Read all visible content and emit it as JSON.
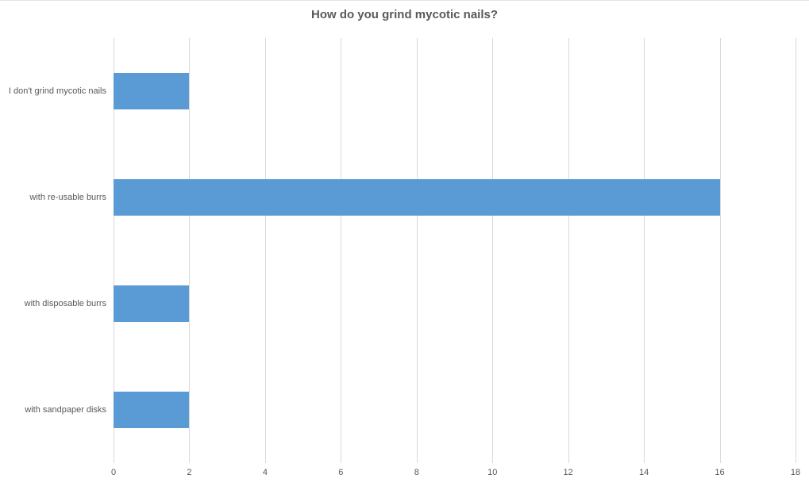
{
  "chart": {
    "title": "How do you grind mycotic nails?"
  },
  "colors": {
    "bar": "#5B9BD5",
    "gridline": "#D9D9D9",
    "title_text": "#595959",
    "axis_text": "#595959",
    "background": "#FFFFFF"
  },
  "chart_data": {
    "type": "bar",
    "orientation": "horizontal",
    "title": "How do you grind mycotic nails?",
    "categories": [
      "I don't grind mycotic nails",
      "with re-usable burrs",
      "with disposable burrs",
      "with sandpaper disks"
    ],
    "values": [
      2,
      16,
      2,
      2
    ],
    "xlabel": "",
    "ylabel": "",
    "xlim": [
      0,
      18
    ],
    "xticks": [
      0,
      2,
      4,
      6,
      8,
      10,
      12,
      14,
      16,
      18
    ],
    "grid": true,
    "legend": false
  }
}
